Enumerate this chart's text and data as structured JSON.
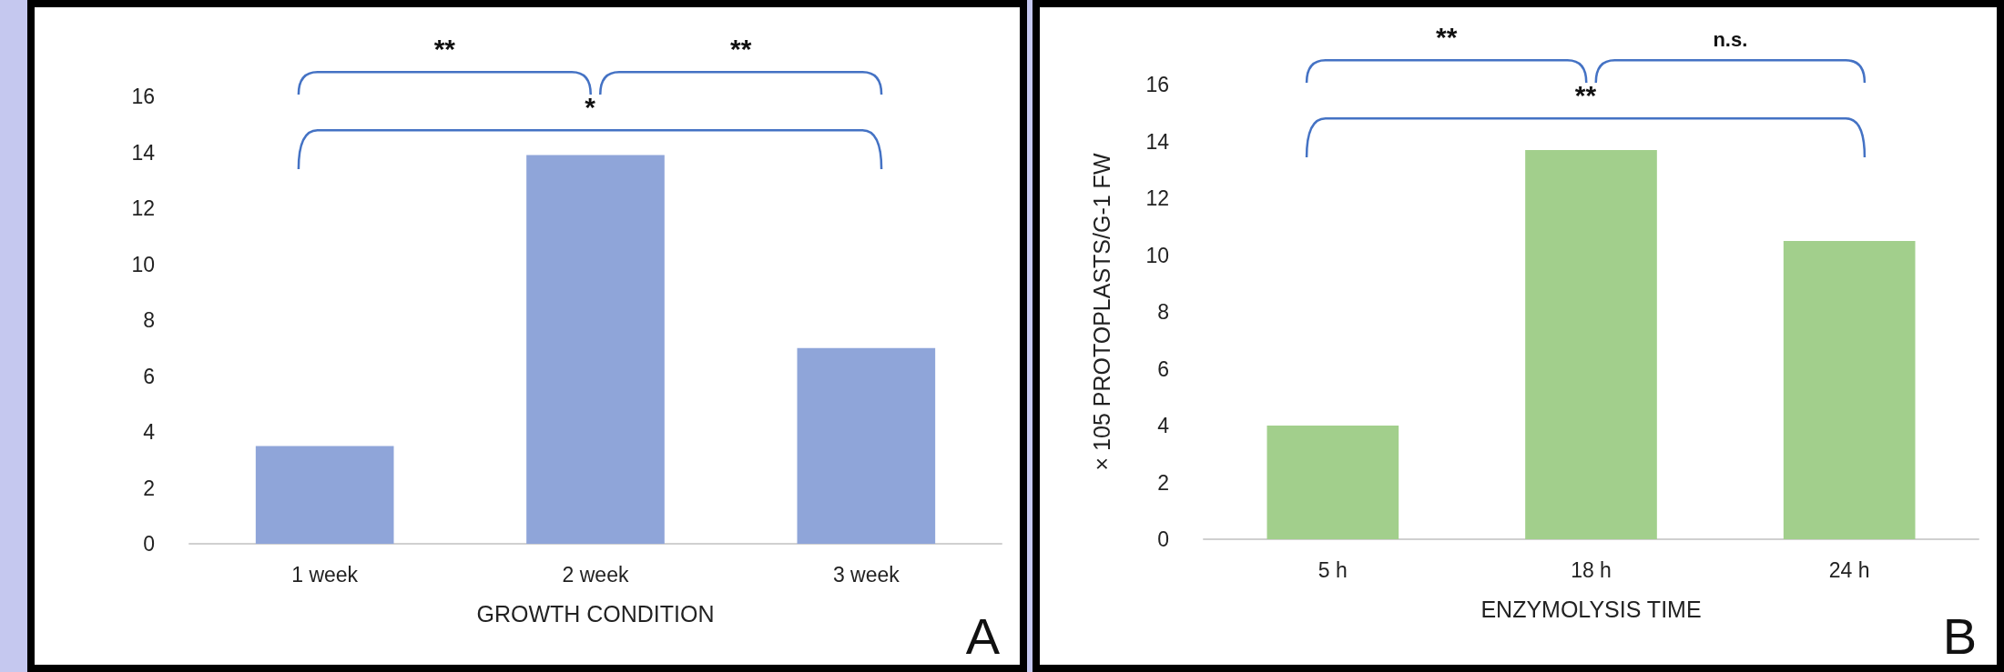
{
  "chart_data": [
    {
      "type": "bar",
      "xlabel": "GROWTH CONDITION",
      "categories": [
        "1 week",
        "2 week",
        "3 week"
      ],
      "values": [
        3.5,
        13.9,
        7.0
      ],
      "color": "#8fa5d9",
      "ylim": [
        0,
        16
      ],
      "yticks": [
        0,
        2,
        4,
        6,
        8,
        10,
        12,
        14,
        16
      ],
      "grid": false,
      "annotations": [
        "**",
        "**",
        "*",
        "A"
      ]
    },
    {
      "type": "bar",
      "xlabel": "ENZYMOLYSIS TIME",
      "ylabel": "× 105 PROTOPLASTS/G-1 FW",
      "categories": [
        "5 h",
        "18 h",
        "24 h"
      ],
      "values": [
        4.0,
        13.7,
        10.5
      ],
      "color": "#a2cf8c",
      "ylim": [
        0,
        16
      ],
      "yticks": [
        0,
        2,
        4,
        6,
        8,
        10,
        12,
        14,
        16
      ],
      "grid": false,
      "annotations": [
        "**",
        "n.s.",
        "**",
        "B"
      ]
    }
  ]
}
